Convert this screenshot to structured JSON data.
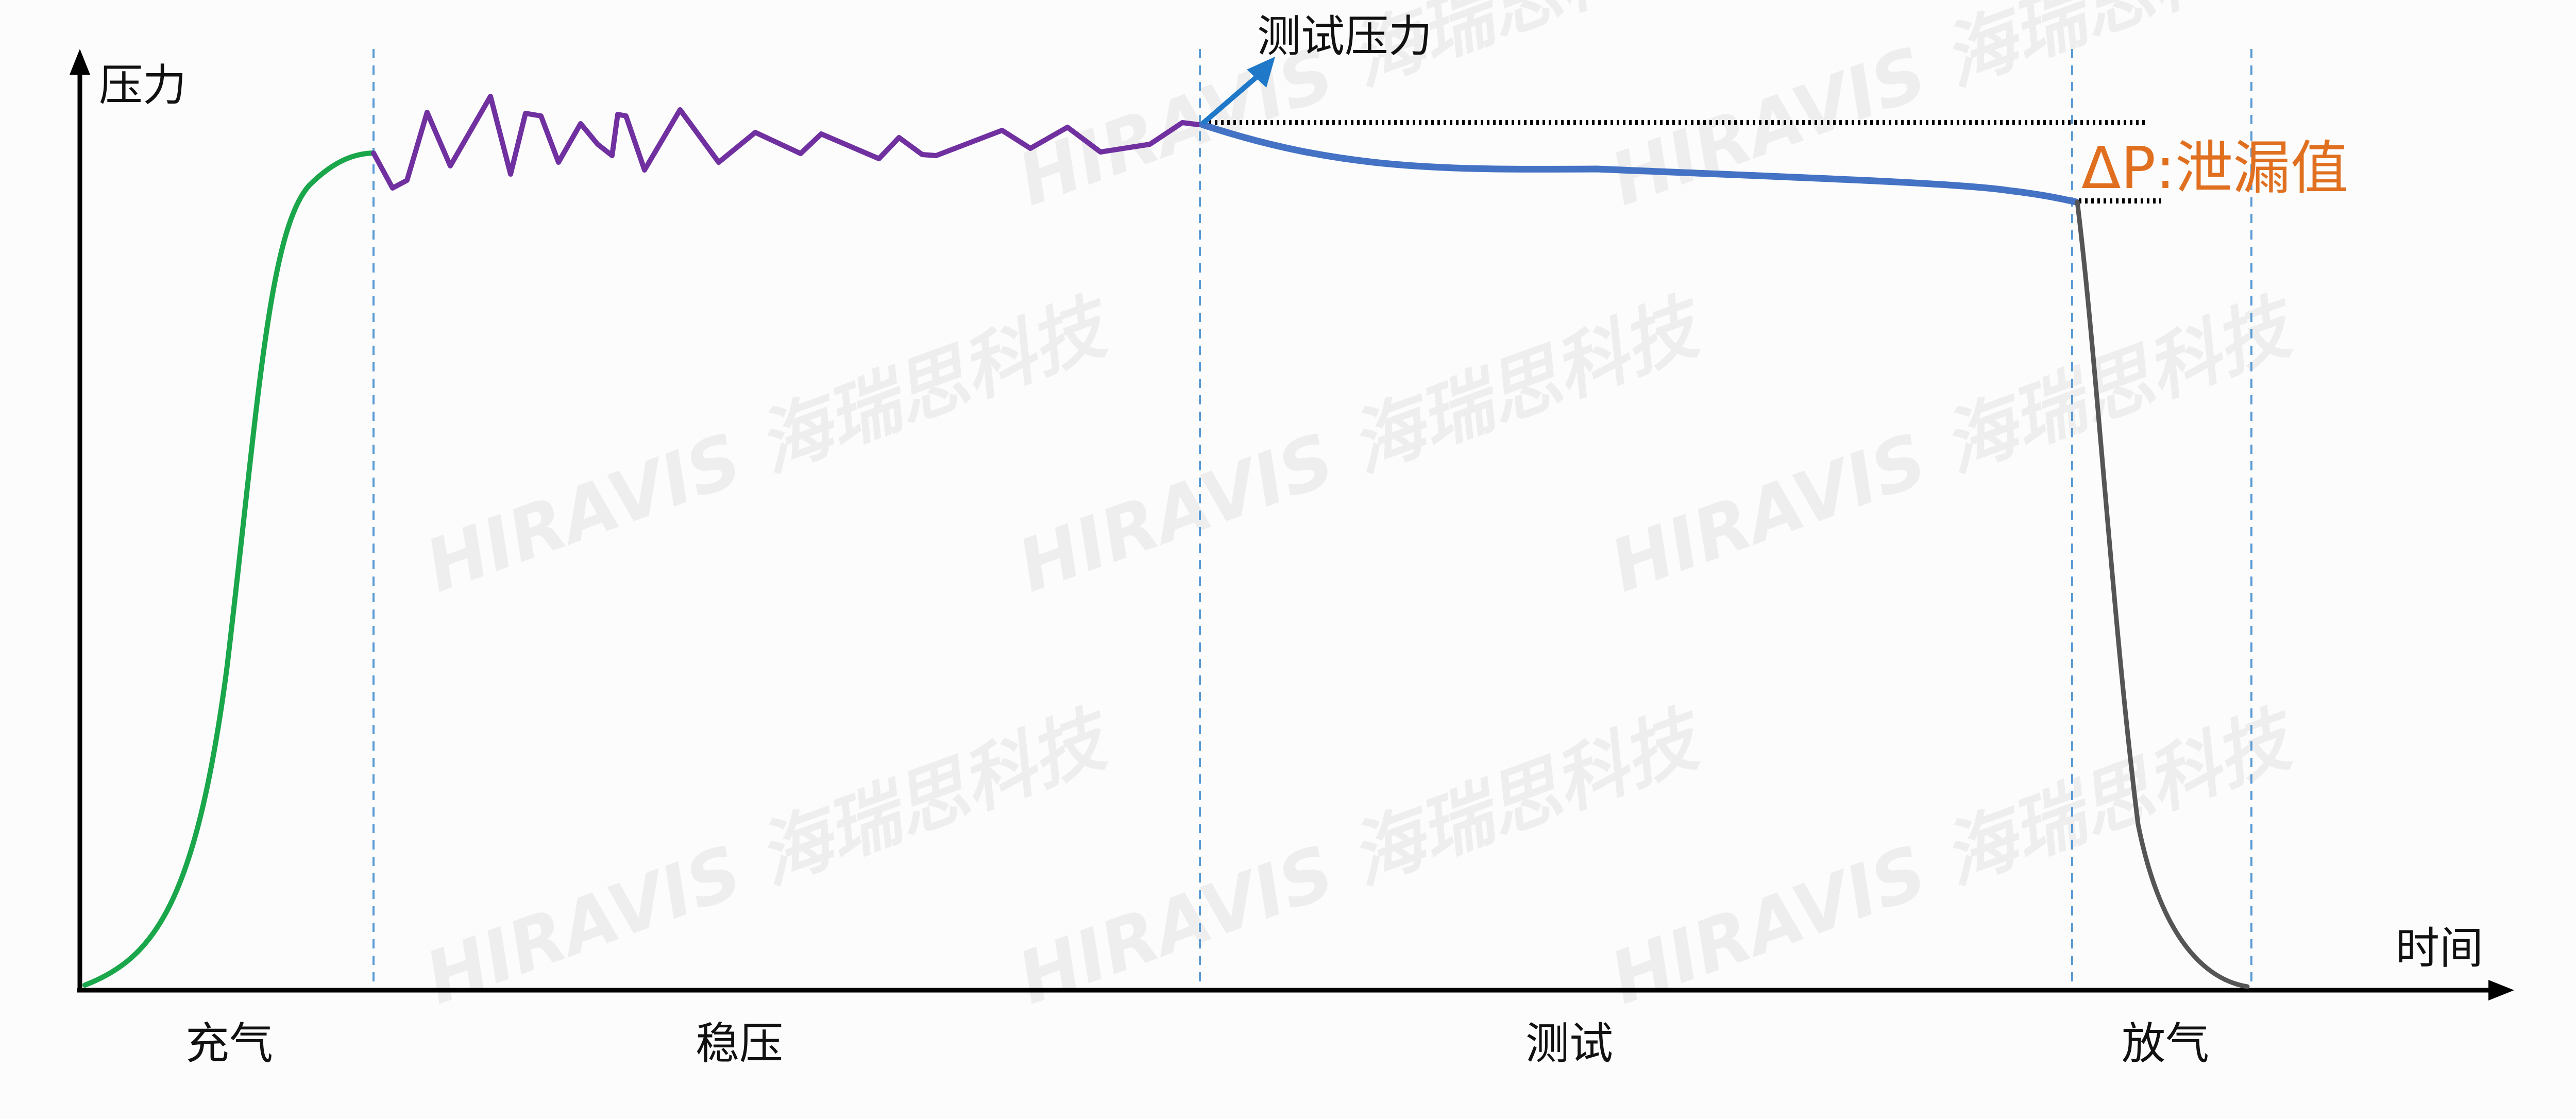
{
  "axes": {
    "y_label": "压力",
    "x_label": "时间"
  },
  "annotations": {
    "test_pressure": "测试压力",
    "leak_value": "ΔP:泄漏值"
  },
  "phases": [
    {
      "label": "充气",
      "color": "#1aa64a"
    },
    {
      "label": "稳压",
      "color": "#7030a0"
    },
    {
      "label": "测试",
      "color": "#4472c4"
    },
    {
      "label": "放气",
      "color": "#555555"
    }
  ],
  "colors": {
    "axis": "#000000",
    "phase_divider": "#5b9bd5",
    "test_pressure_arrow": "#1f78c8",
    "leak_value_text": "#e07020"
  },
  "watermark": "HIRAVIS 海瑞思科技"
}
